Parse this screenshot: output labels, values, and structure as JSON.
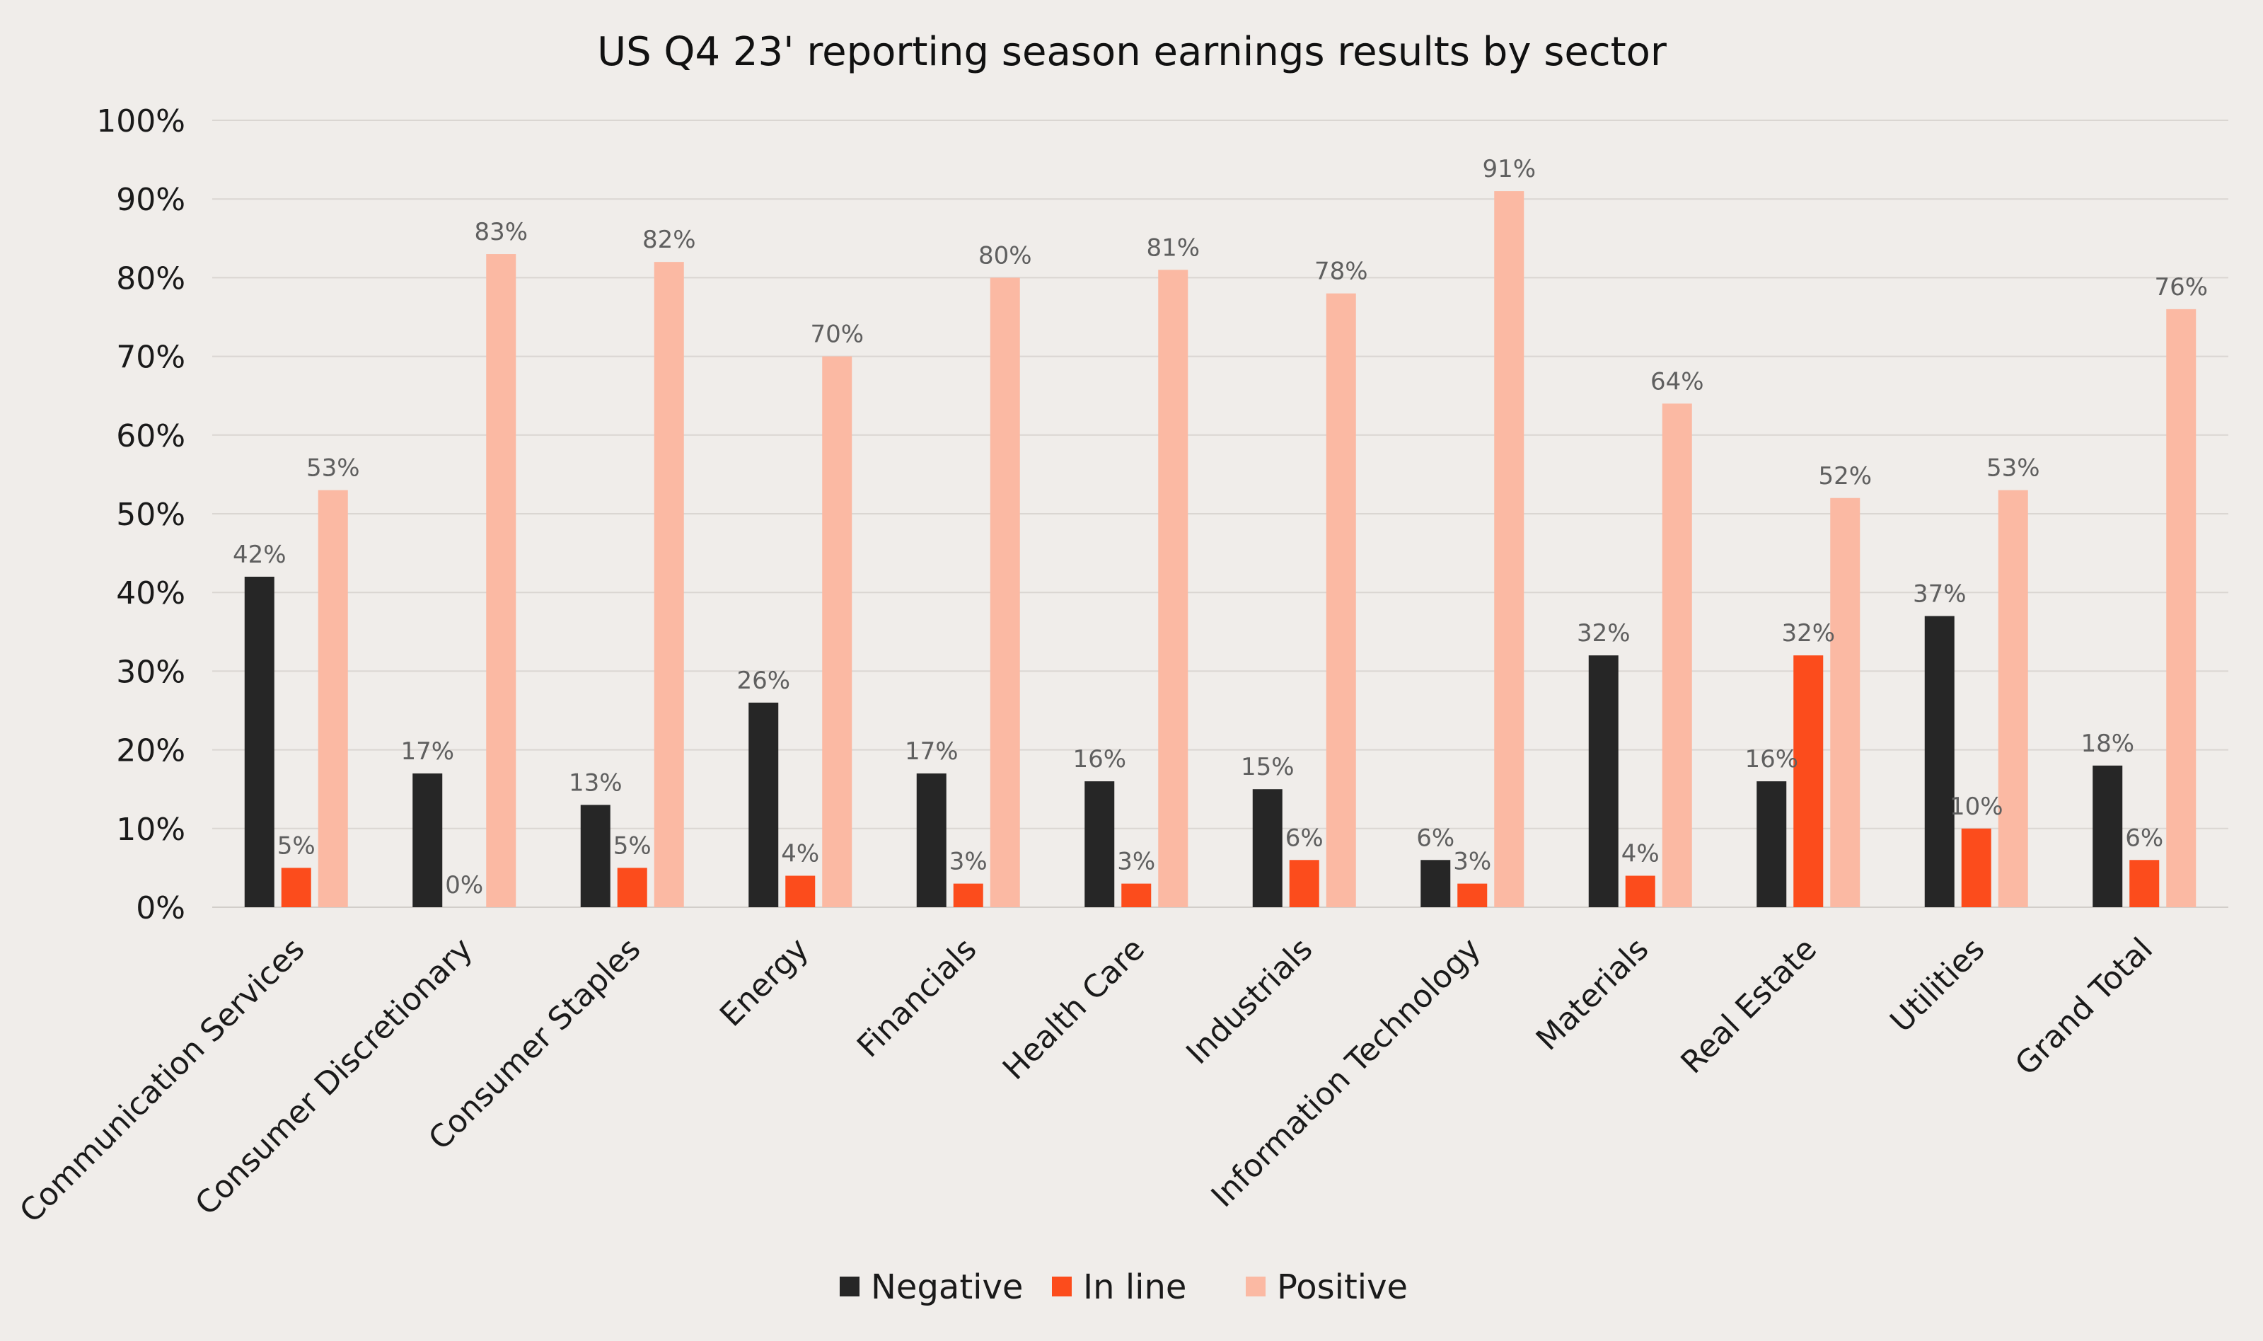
{
  "chart_data": {
    "type": "bar",
    "title": "US Q4 23' reporting season earnings results by sector",
    "xlabel": "",
    "ylabel": "",
    "ylim": [
      0,
      100
    ],
    "y_ticks": [
      "0%",
      "10%",
      "20%",
      "30%",
      "40%",
      "50%",
      "60%",
      "70%",
      "80%",
      "90%",
      "100%"
    ],
    "grid": true,
    "legend_position": "bottom",
    "categories": [
      "Communication Services",
      "Consumer Discretionary",
      "Consumer Staples",
      "Energy",
      "Financials",
      "Health Care",
      "Industrials",
      "Information Technology",
      "Materials",
      "Real Estate",
      "Utilities",
      "Grand Total"
    ],
    "series": [
      {
        "name": "Negative",
        "color": "#262626",
        "values": [
          42,
          17,
          13,
          26,
          17,
          16,
          15,
          6,
          32,
          16,
          37,
          18
        ],
        "labels": [
          "42%",
          "17%",
          "13%",
          "26%",
          "17%",
          "16%",
          "15%",
          "6%",
          "32%",
          "16%",
          "37%",
          "18%"
        ]
      },
      {
        "name": "In line",
        "color": "#FC4C1C",
        "values": [
          5,
          0,
          5,
          4,
          3,
          3,
          6,
          3,
          4,
          32,
          10,
          6
        ],
        "labels": [
          "5%",
          "0%",
          "5%",
          "4%",
          "3%",
          "3%",
          "6%",
          "3%",
          "4%",
          "32%",
          "10%",
          "6%"
        ]
      },
      {
        "name": "Positive",
        "color": "#FBB9A3",
        "values": [
          53,
          83,
          82,
          70,
          80,
          81,
          78,
          91,
          64,
          52,
          53,
          76
        ],
        "labels": [
          "53%",
          "83%",
          "82%",
          "70%",
          "80%",
          "81%",
          "78%",
          "91%",
          "64%",
          "52%",
          "53%",
          "76%"
        ]
      }
    ]
  },
  "colors": {
    "background": "#F0EDEA",
    "gridline": "#DAD6D2",
    "axis": "#D2CECA"
  }
}
